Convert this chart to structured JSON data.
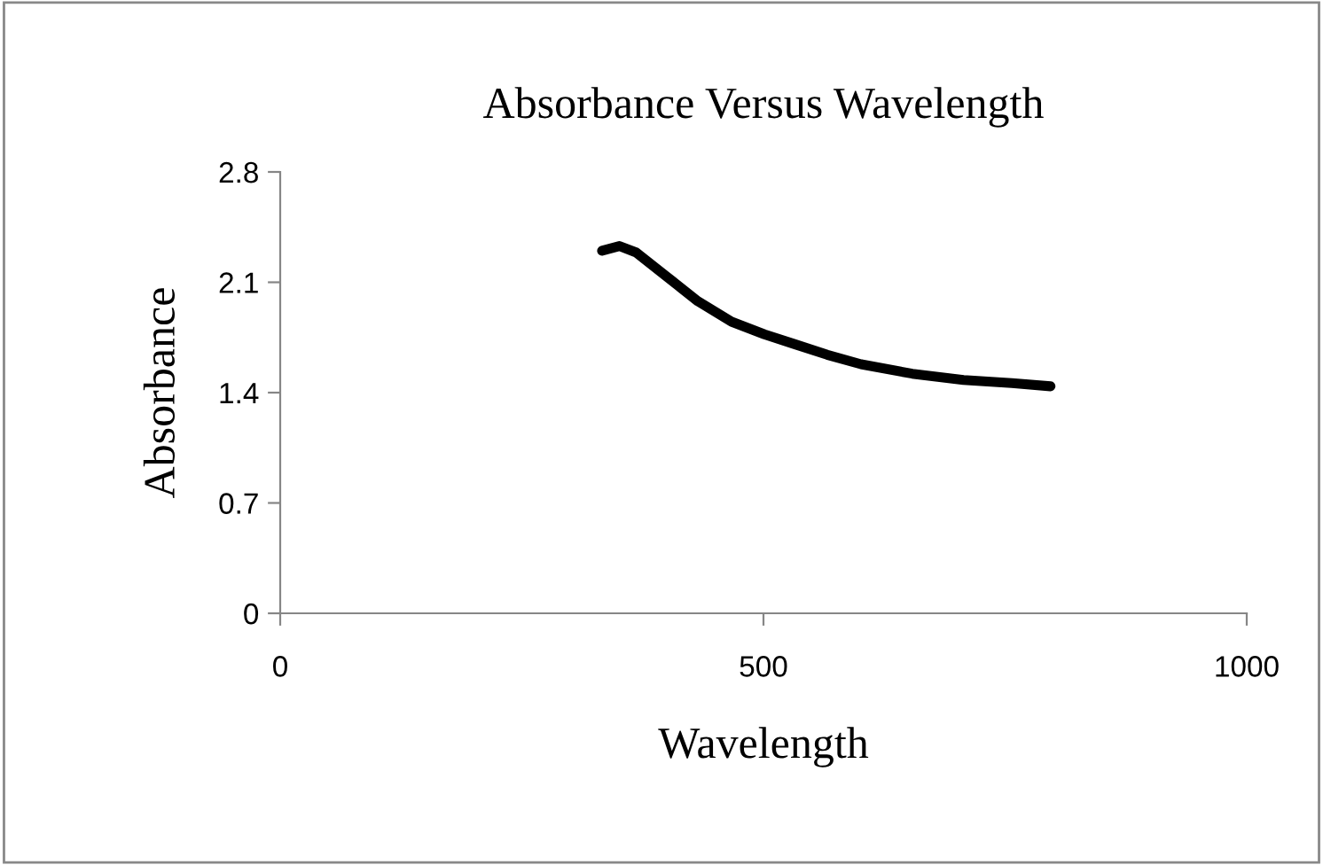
{
  "chart_data": {
    "type": "line",
    "title": "Absorbance Versus Wavelength",
    "xlabel": "Wavelength",
    "ylabel": "Absorbance",
    "series": [
      {
        "color": "#000000",
        "x": [
          333,
          351,
          368,
          397,
          432,
          467,
          501,
          531,
          566,
          601,
          654,
          707,
          757,
          797
        ],
        "values": [
          2.3,
          2.33,
          2.29,
          2.15,
          1.98,
          1.85,
          1.77,
          1.71,
          1.64,
          1.58,
          1.52,
          1.48,
          1.46,
          1.44
        ]
      }
    ],
    "xlim": [
      0,
      1000
    ],
    "xticks": [
      0,
      500,
      1000
    ],
    "ylim": [
      0,
      2.8
    ],
    "yticks": [
      0,
      0.7,
      1.4,
      2.1,
      2.8
    ],
    "grid": false,
    "legend": false,
    "marker": "none",
    "line_style": "solid"
  }
}
